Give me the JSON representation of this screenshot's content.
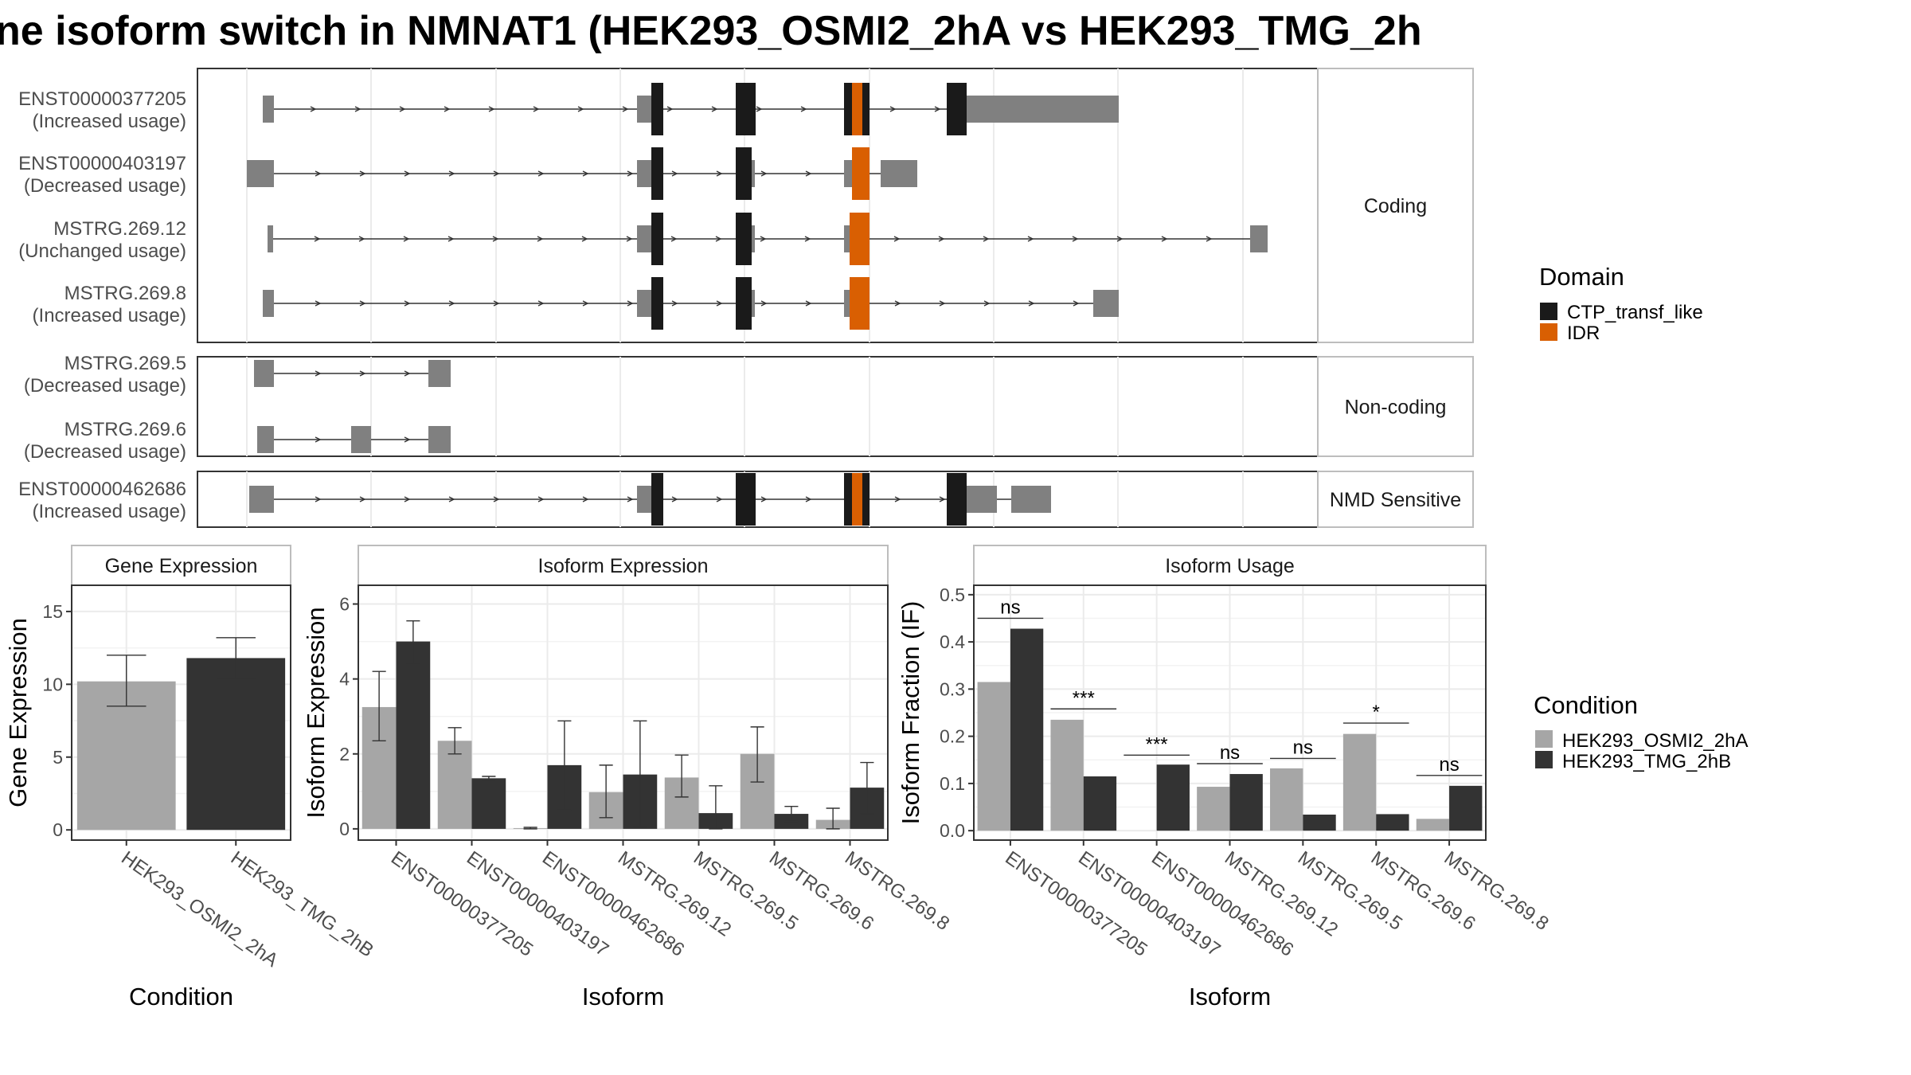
{
  "title": "ne isoform switch in NMNAT1 (HEK293_OSMI2_2hA vs HEK293_TMG_2h",
  "structure": {
    "groups": [
      {
        "label": "Coding",
        "isoforms": [
          {
            "id": "ENST00000377205",
            "usage": "(Increased usage)"
          },
          {
            "id": "ENST00000403197",
            "usage": "(Decreased usage)"
          },
          {
            "id": "MSTRG.269.12",
            "usage": "(Unchanged usage)"
          },
          {
            "id": "MSTRG.269.8",
            "usage": "(Increased usage)"
          }
        ]
      },
      {
        "label": "Non-coding",
        "isoforms": [
          {
            "id": "MSTRG.269.5",
            "usage": "(Decreased usage)"
          },
          {
            "id": "MSTRG.269.6",
            "usage": "(Decreased usage)"
          }
        ]
      },
      {
        "label": "NMD Sensitive",
        "isoforms": [
          {
            "id": "ENST00000462686",
            "usage": "(Increased usage)"
          }
        ]
      }
    ]
  },
  "domain_legend": {
    "title": "Domain",
    "items": [
      {
        "label": "CTP_transf_like",
        "color": "#1a1a1a"
      },
      {
        "label": "IDR",
        "color": "#d95f02"
      }
    ]
  },
  "condition_legend": {
    "title": "Condition",
    "items": [
      {
        "label": "HEK293_OSMI2_2hA",
        "color": "#a6a6a6"
      },
      {
        "label": "HEK293_TMG_2hB",
        "color": "#333333"
      }
    ]
  },
  "colors": {
    "exon": "#808080",
    "cds": "#1a1a1a",
    "idr": "#d95f02",
    "cond1": "#a6a6a6",
    "cond2": "#333333"
  },
  "chart_data": [
    {
      "type": "bar",
      "title": "Gene Expression",
      "xlabel": "Condition",
      "ylabel": "Gene Expression",
      "categories": [
        "HEK293_OSMI2_2hA",
        "HEK293_TMG_2hB"
      ],
      "values": [
        10.2,
        11.8
      ],
      "errors": [
        [
          8.5,
          12.0
        ],
        [
          10.4,
          13.2
        ]
      ],
      "yticks": [
        0,
        5,
        10,
        15
      ],
      "ylim": [
        -0.7,
        16.8
      ],
      "grid": true
    },
    {
      "type": "bar",
      "title": "Isoform Expression",
      "xlabel": "Isoform",
      "ylabel": "Isoform Expression",
      "categories": [
        "ENST00000377205",
        "ENST00000403197",
        "ENST00000462686",
        "MSTRG.269.12",
        "MSTRG.269.5",
        "MSTRG.269.6",
        "MSTRG.269.8"
      ],
      "series": [
        {
          "name": "HEK293_OSMI2_2hA",
          "values": [
            3.25,
            2.35,
            0.02,
            0.98,
            1.37,
            2.0,
            0.24
          ],
          "errors": [
            [
              2.35,
              4.2
            ],
            [
              2.0,
              2.7
            ],
            [
              0.0,
              0.04
            ],
            [
              0.3,
              1.7
            ],
            [
              0.85,
              1.97
            ],
            [
              1.25,
              2.72
            ],
            [
              0.0,
              0.55
            ]
          ]
        },
        {
          "name": "HEK293_TMG_2hB",
          "values": [
            5.0,
            1.35,
            1.7,
            1.45,
            0.42,
            0.4,
            1.1
          ],
          "errors": [
            [
              4.4,
              5.55
            ],
            [
              1.3,
              1.4
            ],
            [
              0.5,
              2.88
            ],
            [
              0.05,
              2.88
            ],
            [
              0.0,
              1.15
            ],
            [
              0.2,
              0.6
            ],
            [
              0.4,
              1.77
            ]
          ]
        }
      ],
      "yticks": [
        0,
        2,
        4,
        6
      ],
      "ylim": [
        -0.3,
        6.5
      ],
      "grid": true
    },
    {
      "type": "bar",
      "title": "Isoform Usage",
      "xlabel": "Isoform",
      "ylabel": "Isoform Fraction (IF)",
      "categories": [
        "ENST00000377205",
        "ENST00000403197",
        "ENST00000462686",
        "MSTRG.269.12",
        "MSTRG.269.5",
        "MSTRG.269.6",
        "MSTRG.269.8"
      ],
      "series": [
        {
          "name": "HEK293_OSMI2_2hA",
          "values": [
            0.315,
            0.235,
            0.0,
            0.093,
            0.132,
            0.205,
            0.025
          ]
        },
        {
          "name": "HEK293_TMG_2hB",
          "values": [
            0.428,
            0.115,
            0.14,
            0.12,
            0.034,
            0.035,
            0.095
          ]
        }
      ],
      "significance": [
        "ns",
        "***",
        "***",
        "ns",
        "ns",
        "*",
        "ns"
      ],
      "sig_y": [
        0.45,
        0.258,
        0.16,
        0.142,
        0.153,
        0.228,
        0.117
      ],
      "yticks": [
        0.0,
        0.1,
        0.2,
        0.3,
        0.4,
        0.5
      ],
      "ylim": [
        -0.02,
        0.52
      ],
      "grid": true
    }
  ]
}
